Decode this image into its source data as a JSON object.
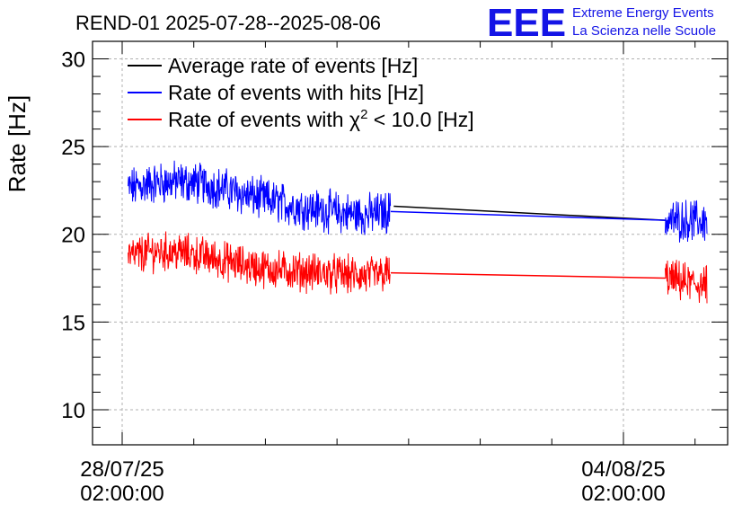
{
  "logo": {
    "mark": "EEE",
    "line1": "Extreme Energy Events",
    "line2": "La Scienza nelle Scuole",
    "color": "#1414e6"
  },
  "chart_data": {
    "type": "line",
    "title": "REND-01 2025-07-28--2025-08-06",
    "ylabel": "Rate [Hz]",
    "xlabel": "",
    "ylim": [
      8,
      31
    ],
    "yticks": [
      10,
      15,
      20,
      25,
      30
    ],
    "x_tick_labels": [
      {
        "date": "28/07/25",
        "time": "02:00:00"
      },
      {
        "date": "04/08/25",
        "time": "02:00:00"
      }
    ],
    "grid": true,
    "legend_position": "top-left",
    "series": [
      {
        "name": "Average rate of events [Hz]",
        "color": "#000000",
        "x": [
          "2025-07-31 21:00",
          "2025-08-04 16:00"
        ],
        "values": [
          21.6,
          20.8
        ]
      },
      {
        "name": "Rate of events with hits [Hz]",
        "color": "#0000ff",
        "x": [
          "2025-07-28 04:00",
          "2025-07-28 12:00",
          "2025-07-28 20:00",
          "2025-07-29 04:00",
          "2025-07-29 12:00",
          "2025-07-29 20:00",
          "2025-07-30 04:00",
          "2025-07-30 12:00",
          "2025-07-30 20:00",
          "2025-07-31 04:00",
          "2025-07-31 12:00",
          "2025-07-31 20:00",
          "2025-08-04 16:00",
          "2025-08-05 00:00",
          "2025-08-05 06:00"
        ],
        "values": [
          22.6,
          22.9,
          23.0,
          22.9,
          22.6,
          22.2,
          21.9,
          21.6,
          21.4,
          21.2,
          21.1,
          21.3,
          20.8,
          20.8,
          20.7
        ],
        "noise": 1.4
      },
      {
        "name": "Rate of events with χ² < 10.0 [Hz]",
        "legend_prefix": "Rate of events with ",
        "legend_symbol": "χ",
        "legend_sup": "2",
        "legend_suffix": " < 10.0 [Hz]",
        "color": "#ff0000",
        "x": [
          "2025-07-28 04:00",
          "2025-07-28 12:00",
          "2025-07-28 20:00",
          "2025-07-29 04:00",
          "2025-07-29 12:00",
          "2025-07-29 20:00",
          "2025-07-30 04:00",
          "2025-07-30 12:00",
          "2025-07-30 20:00",
          "2025-07-31 04:00",
          "2025-07-31 12:00",
          "2025-07-31 20:00",
          "2025-08-04 16:00",
          "2025-08-05 00:00",
          "2025-08-05 06:00"
        ],
        "values": [
          18.7,
          19.0,
          19.0,
          18.8,
          18.5,
          18.2,
          18.0,
          17.9,
          17.8,
          17.7,
          17.6,
          17.8,
          17.5,
          17.2,
          17.1
        ],
        "noise": 1.3
      }
    ]
  }
}
